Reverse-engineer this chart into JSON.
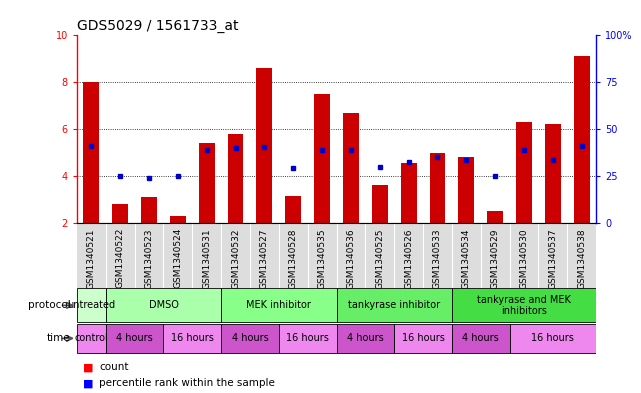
{
  "title": "GDS5029 / 1561733_at",
  "samples": [
    "GSM1340521",
    "GSM1340522",
    "GSM1340523",
    "GSM1340524",
    "GSM1340531",
    "GSM1340532",
    "GSM1340527",
    "GSM1340528",
    "GSM1340535",
    "GSM1340536",
    "GSM1340525",
    "GSM1340526",
    "GSM1340533",
    "GSM1340534",
    "GSM1340529",
    "GSM1340530",
    "GSM1340537",
    "GSM1340538"
  ],
  "red_values": [
    8.0,
    2.8,
    3.1,
    2.3,
    5.4,
    5.8,
    8.6,
    3.15,
    7.5,
    6.7,
    3.6,
    4.55,
    5.0,
    4.8,
    2.5,
    6.3,
    6.2,
    9.1
  ],
  "blue_values": [
    5.3,
    4.0,
    3.9,
    4.0,
    5.1,
    5.2,
    5.25,
    4.35,
    5.1,
    5.1,
    4.4,
    4.6,
    4.8,
    4.7,
    4.0,
    5.1,
    4.7,
    5.3
  ],
  "ymin": 2,
  "ymax": 10,
  "yticks": [
    2,
    4,
    6,
    8,
    10
  ],
  "right_yticks": [
    0,
    25,
    50,
    75,
    100
  ],
  "right_ytick_labels": [
    "0",
    "25",
    "50",
    "75",
    "100%"
  ],
  "protocol_groups": [
    {
      "label": "untreated",
      "start": 0,
      "end": 1,
      "color": "#ccffcc"
    },
    {
      "label": "DMSO",
      "start": 1,
      "end": 5,
      "color": "#aaffaa"
    },
    {
      "label": "MEK inhibitor",
      "start": 5,
      "end": 9,
      "color": "#88ff88"
    },
    {
      "label": "tankyrase inhibitor",
      "start": 9,
      "end": 13,
      "color": "#66ee66"
    },
    {
      "label": "tankyrase and MEK\ninhibitors",
      "start": 13,
      "end": 18,
      "color": "#44dd44"
    }
  ],
  "time_groups": [
    {
      "label": "control",
      "start": 0,
      "end": 1,
      "color": "#ee88ee"
    },
    {
      "label": "4 hours",
      "start": 1,
      "end": 3,
      "color": "#cc55cc"
    },
    {
      "label": "16 hours",
      "start": 3,
      "end": 5,
      "color": "#ee88ee"
    },
    {
      "label": "4 hours",
      "start": 5,
      "end": 7,
      "color": "#cc55cc"
    },
    {
      "label": "16 hours",
      "start": 7,
      "end": 9,
      "color": "#ee88ee"
    },
    {
      "label": "4 hours",
      "start": 9,
      "end": 11,
      "color": "#cc55cc"
    },
    {
      "label": "16 hours",
      "start": 11,
      "end": 13,
      "color": "#ee88ee"
    },
    {
      "label": "4 hours",
      "start": 13,
      "end": 15,
      "color": "#cc55cc"
    },
    {
      "label": "16 hours",
      "start": 15,
      "end": 18,
      "color": "#ee88ee"
    }
  ],
  "bar_color": "#cc0000",
  "dot_color": "#0000cc",
  "title_fontsize": 10,
  "tick_fontsize": 7,
  "label_fontsize": 8,
  "xtick_fontsize": 6.5,
  "proto_time_fontsize": 7.5,
  "cell_fontsize": 7
}
